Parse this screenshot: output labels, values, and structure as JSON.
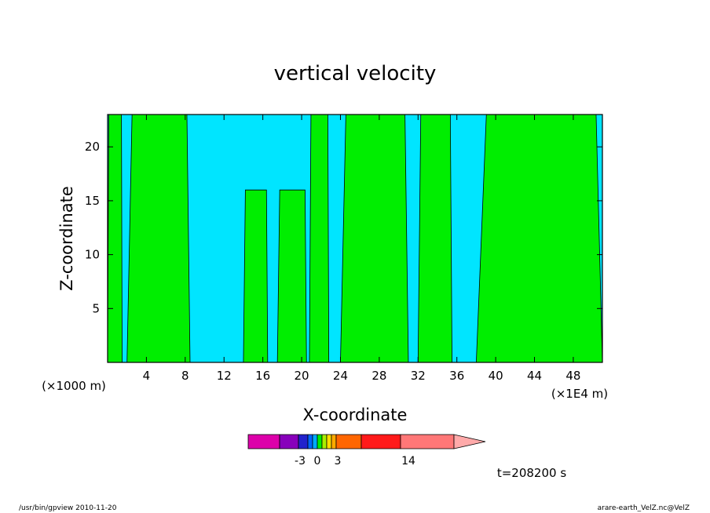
{
  "chart_data": {
    "type": "heatmap",
    "title": "vertical velocity",
    "xlabel": "X-coordinate",
    "ylabel": "Z-coordinate",
    "x_unit_left": "(×1000 m)",
    "x_unit_right": "(×1E4 m)",
    "xlim": [
      0,
      51
    ],
    "ylim": [
      0,
      23
    ],
    "x_ticks": [
      4,
      8,
      12,
      16,
      20,
      24,
      28,
      32,
      36,
      40,
      44,
      48
    ],
    "y_ticks": [
      5,
      10,
      15,
      20
    ],
    "shading": {
      "negative_color": "#00e5ff",
      "positive_color": "#00ee00",
      "updraft_columns": [
        {
          "x": [
            0.0,
            1.5
          ],
          "z": [
            0,
            23
          ]
        },
        {
          "x": [
            2.0,
            8.5
          ],
          "z": [
            0,
            23
          ]
        },
        {
          "x": [
            14.0,
            16.5
          ],
          "z": [
            0,
            16
          ]
        },
        {
          "x": [
            17.5,
            20.5
          ],
          "z": [
            0,
            16
          ]
        },
        {
          "x": [
            20.8,
            22.8
          ],
          "z": [
            0,
            23
          ]
        },
        {
          "x": [
            24.0,
            31.0
          ],
          "z": [
            0,
            23
          ]
        },
        {
          "x": [
            32.0,
            35.5
          ],
          "z": [
            0,
            23
          ]
        },
        {
          "x": [
            38.0,
            51.0
          ],
          "z": [
            0,
            23
          ]
        }
      ]
    },
    "colorbar": {
      "colors": [
        "#dd00aa",
        "#8800bb",
        "#2222cc",
        "#0066ff",
        "#00aaff",
        "#00ee00",
        "#aaee00",
        "#ffdd00",
        "#ffaa00",
        "#ff6600",
        "#ff1a1a",
        "#ff7777",
        "#ffaaaa"
      ],
      "tick_labels": [
        "-3",
        "0",
        "3",
        "14"
      ]
    },
    "time_label": "t=208200 s"
  },
  "footer": {
    "left": "/usr/bin/gpview   2010-11-20",
    "right": "arare-earth_VelZ.nc@VelZ"
  }
}
